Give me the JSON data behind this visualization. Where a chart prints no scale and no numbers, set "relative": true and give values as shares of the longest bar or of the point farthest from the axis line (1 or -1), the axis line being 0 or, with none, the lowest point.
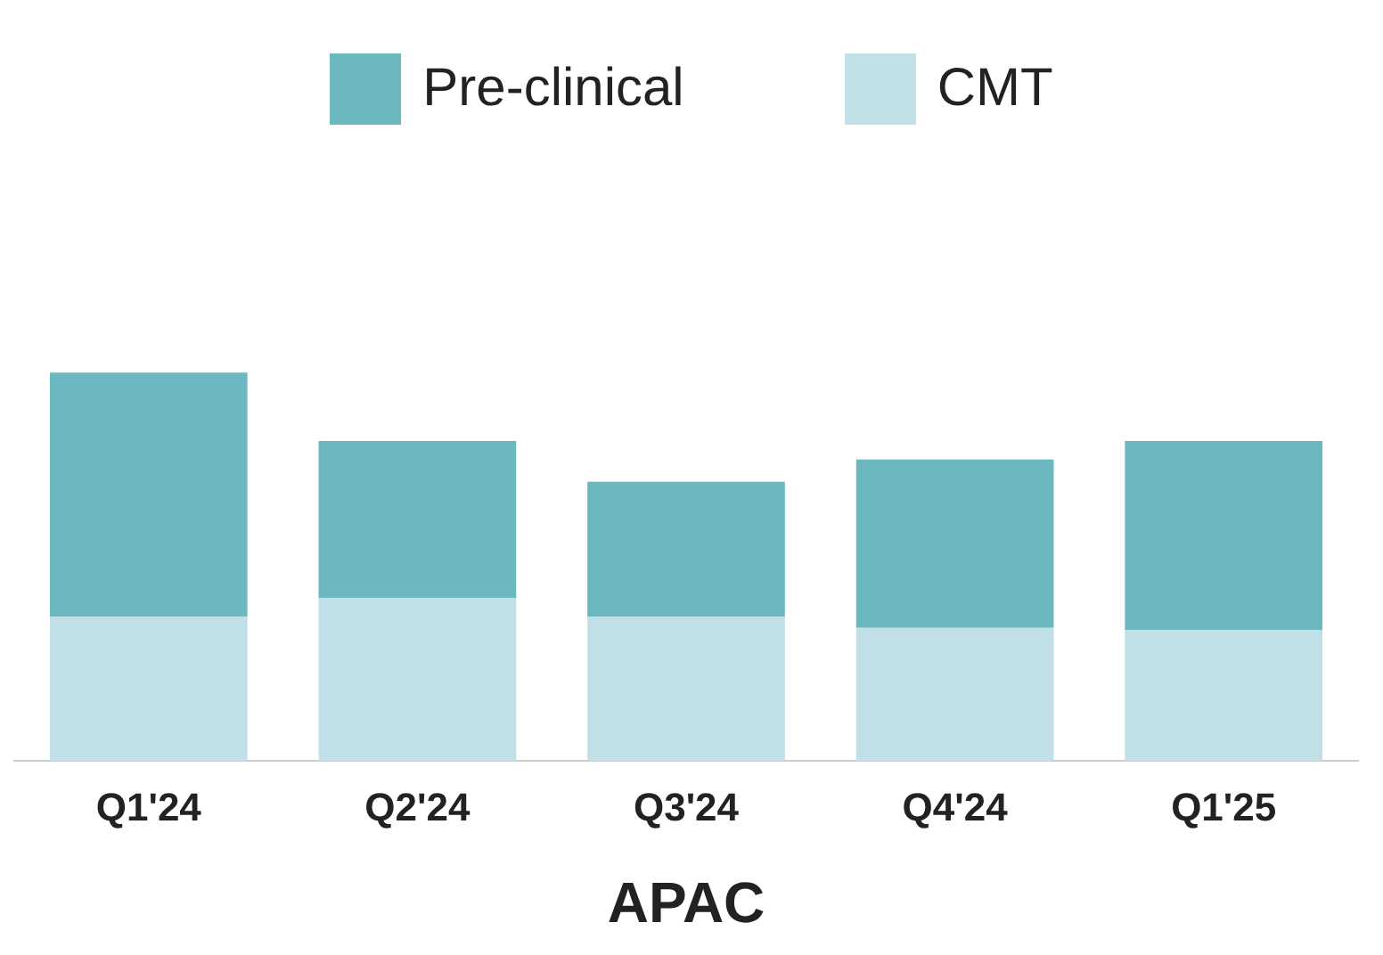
{
  "chart_data": {
    "type": "bar",
    "stacked": true,
    "relative": true,
    "xlabel": "APAC",
    "legend": "top",
    "grid": false,
    "categories": [
      "Q1'24",
      "Q2'24",
      "Q3'24",
      "Q4'24",
      "Q1'25"
    ],
    "series": [
      {
        "name": "CMT",
        "color": "#c0dfe7",
        "values": [
          0.371,
          0.419,
          0.371,
          0.343,
          0.338
        ]
      },
      {
        "name": "Pre-clinical",
        "color": "#6bb8c0",
        "values": [
          0.629,
          0.405,
          0.348,
          0.433,
          0.486
        ]
      }
    ]
  }
}
